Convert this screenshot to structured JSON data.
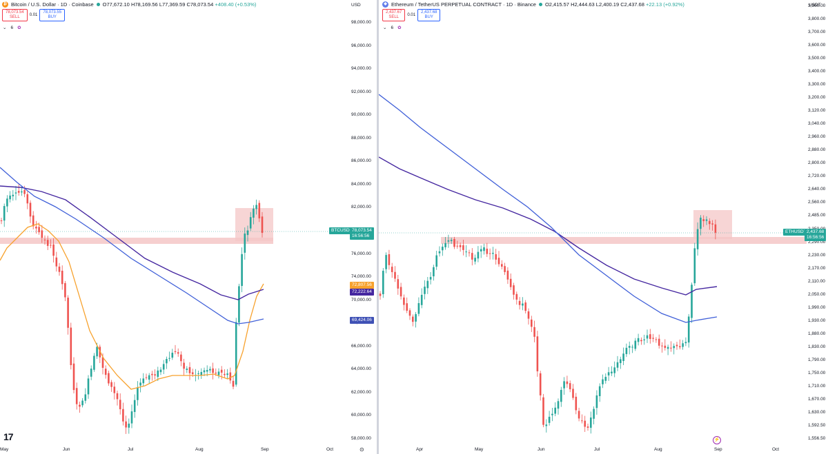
{
  "left_chart": {
    "symbol_title": "Bitcoin / U.S. Dollar · 1D · Coinbase",
    "coin_glyph": "₿",
    "ohlc": {
      "o": "O77,672.10",
      "h": "H78,169.56",
      "l": "L77,369.59",
      "c": "C78,073.54",
      "change": "+408.40 (+0.53%)"
    },
    "sell_price": "78,073.54",
    "sell_label": "SELL",
    "spread": "0.01",
    "buy_price": "78,073.55",
    "buy_label": "BUY",
    "indicator_count": "6",
    "currency": "USD",
    "y_ticks": [
      "98,000.00",
      "96,000.00",
      "94,000.00",
      "92,000.00",
      "90,000.00",
      "88,000.00",
      "86,000.00",
      "84,000.00",
      "82,000.00",
      "80,000.00",
      "76,000.00",
      "74,000.00",
      "70,000.00",
      "68,000.00",
      "66,000.00",
      "64,000.00",
      "62,000.00",
      "60,000.00",
      "58,000.00"
    ],
    "x_ticks": [
      "May",
      "Jun",
      "Jul",
      "Aug",
      "Sep",
      "Oct"
    ],
    "price_tag": {
      "symbol": "BTCUSD",
      "price": "78,073.54",
      "countdown": "16:56:56"
    },
    "indicator_tags": [
      {
        "value": "72,807.56",
        "color": "#f7931a"
      },
      {
        "value": "72,222.64",
        "color": "#4527a0"
      },
      {
        "value": "69,424.06",
        "color": "#3f51b5"
      }
    ],
    "logo": "17"
  },
  "right_chart": {
    "symbol_title": "Ethereum / TetherUS PERPETUAL CONTRACT · 1D · Binance",
    "coin_glyph": "◆",
    "ohlc": {
      "o": "O2,415.57",
      "h": "H2,444.63",
      "l": "L2,400.19",
      "c": "C2,437.68",
      "change": "+22.13 (+0.92%)"
    },
    "sell_price": "2,437.67",
    "sell_label": "SELL",
    "spread": "0.01",
    "buy_price": "2,437.68",
    "buy_label": "BUY",
    "indicator_count": "6",
    "currency": "USDT",
    "y_ticks": [
      "3,900.00",
      "3,800.00",
      "3,700.00",
      "3,600.00",
      "3,500.00",
      "3,400.00",
      "3,300.00",
      "3,200.00",
      "3,120.00",
      "3,040.00",
      "2,960.00",
      "2,880.00",
      "2,800.00",
      "2,720.00",
      "2,640.00",
      "2,560.00",
      "2,485.00",
      "2,350.00",
      "2,290.00",
      "2,230.00",
      "2,170.00",
      "2,110.00",
      "2,050.00",
      "1,990.00",
      "1,930.00",
      "1,880.00",
      "1,830.00",
      "1,790.00",
      "1,750.00",
      "1,710.00",
      "1,670.00",
      "1,630.00",
      "1,592.50",
      "1,556.50"
    ],
    "x_ticks": [
      "Apr",
      "May",
      "Jun",
      "Jul",
      "Aug",
      "Sep",
      "Oct"
    ],
    "price_tag": {
      "symbol": "ETHUSDT.P",
      "price": "2,437.68",
      "countdown": "16:56:56"
    }
  },
  "colors": {
    "up": "#26a69a",
    "down": "#ef5350",
    "ma_orange": "#f7a12c",
    "ma_dark": "#4527a0",
    "ma_blue": "#3f5fd8",
    "zone": "#f4c7c7"
  }
}
